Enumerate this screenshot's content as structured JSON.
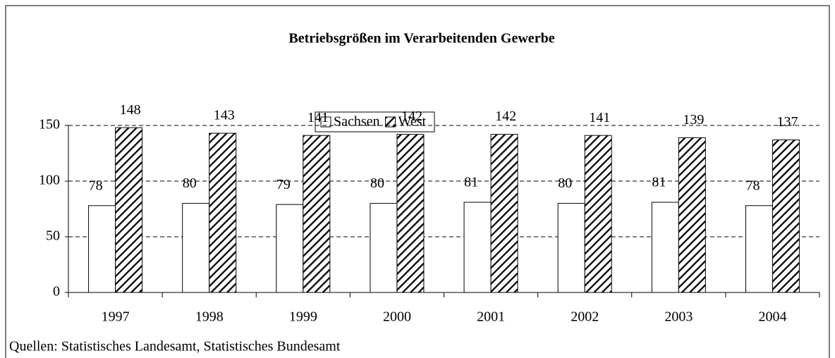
{
  "chart_data": {
    "type": "bar",
    "title": "Betriebsgrößen im Verarbeitenden Gewerbe",
    "categories": [
      "1997",
      "1998",
      "1999",
      "2000",
      "2001",
      "2002",
      "2003",
      "2004"
    ],
    "series": [
      {
        "name": "Sachsen",
        "color": "#ffffff",
        "values": [
          78,
          80,
          79,
          80,
          81,
          80,
          81,
          78
        ]
      },
      {
        "name": "West",
        "color": "#000000",
        "pattern": "hatch",
        "values": [
          148,
          143,
          141,
          142,
          142,
          141,
          139,
          137
        ]
      }
    ],
    "ylim": [
      0,
      150
    ],
    "yticks": [
      0,
      50,
      100,
      150
    ],
    "grid": true,
    "source": "Quellen: Statistisches Landesamt, Statistisches Bundesamt"
  }
}
